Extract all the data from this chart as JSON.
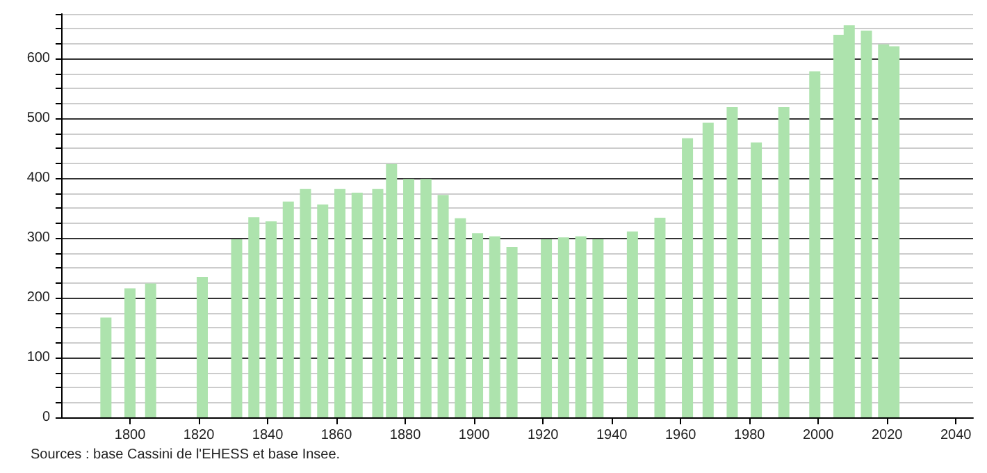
{
  "chart_data": {
    "type": "bar",
    "annotations": [
      "Sources : base Cassini de l'EHESS et base Insee."
    ],
    "x": [
      1793,
      1800,
      1806,
      1821,
      1831,
      1836,
      1841,
      1846,
      1851,
      1856,
      1861,
      1866,
      1872,
      1876,
      1881,
      1886,
      1891,
      1896,
      1901,
      1906,
      1911,
      1921,
      1926,
      1931,
      1936,
      1946,
      1954,
      1962,
      1968,
      1975,
      1982,
      1990,
      1999,
      2006,
      2009,
      2014,
      2019,
      2022
    ],
    "values": [
      167,
      216,
      224,
      235,
      298,
      335,
      328,
      361,
      382,
      356,
      382,
      376,
      382,
      424,
      399,
      399,
      372,
      333,
      308,
      303,
      285,
      298,
      301,
      303,
      298,
      311,
      334,
      467,
      493,
      519,
      460,
      519,
      579,
      640,
      656,
      647,
      624,
      621
    ],
    "color": "#ade3ad",
    "xlim": [
      1780,
      2045
    ],
    "xticks": [
      1800,
      1820,
      1840,
      1860,
      1880,
      1900,
      1920,
      1940,
      1960,
      1980,
      2000,
      2020,
      2040
    ],
    "ylim": [
      0,
      675
    ],
    "yticks": [
      0,
      {
        "value": 25,
        "label": null
      },
      {
        "value": 50,
        "label": null
      },
      {
        "value": 75,
        "label": null
      },
      100,
      {
        "value": 125,
        "label": null
      },
      {
        "value": 150,
        "label": null
      },
      {
        "value": 175,
        "label": null
      },
      200,
      {
        "value": 225,
        "label": null
      },
      {
        "value": 250,
        "label": null
      },
      {
        "value": 275,
        "label": null
      },
      300,
      {
        "value": 325,
        "label": null
      },
      {
        "value": 350,
        "label": null
      },
      {
        "value": 375,
        "label": null
      },
      400,
      {
        "value": 425,
        "label": null
      },
      {
        "value": 450,
        "label": null
      },
      {
        "value": 475,
        "label": null
      },
      500,
      {
        "value": 525,
        "label": null
      },
      {
        "value": 550,
        "label": null
      },
      {
        "value": 575,
        "label": null
      },
      600,
      {
        "value": 625,
        "label": null
      },
      {
        "value": 650,
        "label": null
      },
      {
        "value": 675,
        "label": null
      }
    ],
    "grid": "y"
  }
}
